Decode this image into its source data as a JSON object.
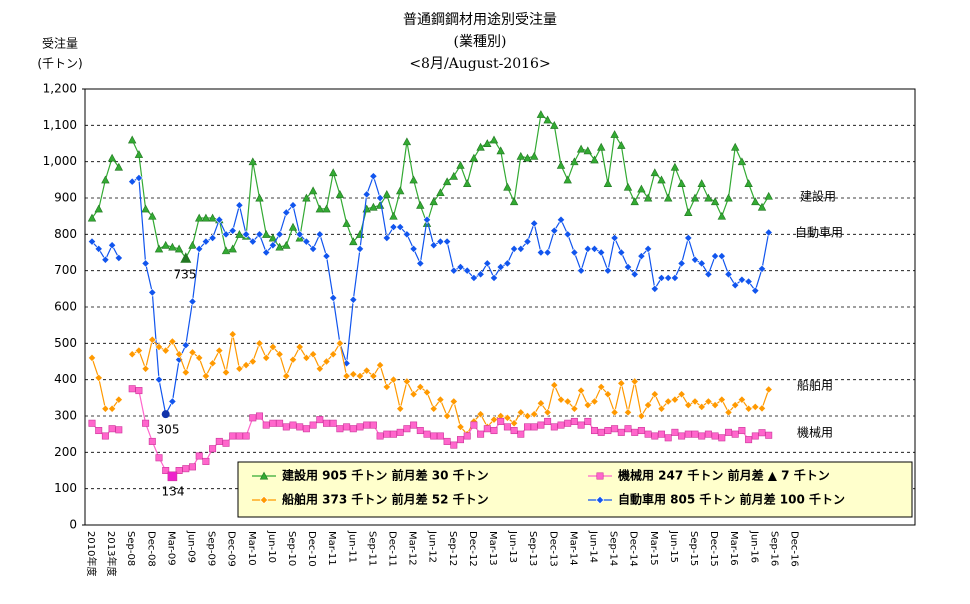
{
  "chart_data": {
    "type": "line",
    "title": [
      "普通鋼鋼材用途別受注量",
      "(業種別)",
      "<8月/August-2016>"
    ],
    "y_label": [
      "受注量",
      "(千トン)"
    ],
    "ylim": [
      0,
      1200
    ],
    "yticks": [
      0,
      100,
      200,
      300,
      400,
      500,
      600,
      700,
      800,
      900,
      {
        "value": 1000,
        "label": "1,000"
      },
      {
        "value": 1100,
        "label": "1,100"
      },
      {
        "value": 1200,
        "label": "1,200"
      }
    ],
    "grid": true,
    "categories": [
      "2010年度",
      null,
      null,
      "2013年度",
      null,
      null,
      "Sep-08",
      null,
      null,
      "Dec-08",
      null,
      null,
      "Mar-09",
      null,
      null,
      "Jun-09",
      null,
      null,
      "Sep-09",
      null,
      null,
      "Dec-09",
      null,
      null,
      "Mar-10",
      null,
      null,
      "Jun-10",
      null,
      null,
      "Sep-10",
      null,
      null,
      "Dec-10",
      null,
      null,
      "Mar-11",
      null,
      null,
      "Jun-11",
      null,
      null,
      "Sep-11",
      null,
      null,
      "Dec-11",
      null,
      null,
      "Mar-12",
      null,
      null,
      "Jun-12",
      null,
      null,
      "Sep-12",
      null,
      null,
      "Dec-12",
      null,
      null,
      "Mar-13",
      null,
      null,
      "Jun-13",
      null,
      null,
      "Sep-13",
      null,
      null,
      "Dec-13",
      null,
      null,
      "Mar-14",
      null,
      null,
      "Jun-14",
      null,
      null,
      "Sep-14",
      null,
      null,
      "Dec-14",
      null,
      null,
      "Mar-15",
      null,
      null,
      "Jun-15",
      null,
      null,
      "Sep-15",
      null,
      null,
      "Dec-15",
      null,
      null,
      "Mar-16",
      null,
      null,
      "Jun-16",
      null,
      null,
      "Sep-16",
      null,
      null,
      "Dec-16"
    ],
    "series": [
      {
        "name": "建設用",
        "color": "#33aa33",
        "marker": "triangle",
        "legend_label": "建設用 905 千トン 前月差 30 千トン",
        "values": [
          845,
          870,
          950,
          1010,
          985,
          null,
          1060,
          1020,
          870,
          850,
          760,
          770,
          765,
          760,
          735,
          770,
          845,
          845,
          845,
          840,
          755,
          760,
          800,
          795,
          1000,
          900,
          800,
          790,
          765,
          770,
          820,
          790,
          900,
          920,
          870,
          870,
          970,
          910,
          830,
          780,
          800,
          870,
          875,
          880,
          910,
          850,
          920,
          1055,
          950,
          880,
          830,
          890,
          915,
          945,
          960,
          990,
          940,
          1010,
          1040,
          1050,
          1060,
          1030,
          930,
          890,
          1015,
          1010,
          1015,
          1130,
          1115,
          1100,
          990,
          950,
          1000,
          1035,
          1030,
          1005,
          1040,
          940,
          1075,
          1045,
          930,
          890,
          925,
          900,
          970,
          950,
          900,
          985,
          940,
          860,
          900,
          940,
          900,
          890,
          850,
          900,
          1040,
          1000,
          940,
          890,
          875,
          905,
          null,
          null,
          null,
          null
        ]
      },
      {
        "name": "自動車用",
        "color": "#1155ee",
        "marker": "diamond",
        "legend_label": "自動車用 805 千トン 前月差 100 千トン",
        "values": [
          780,
          760,
          730,
          770,
          735,
          null,
          945,
          955,
          720,
          640,
          400,
          305,
          340,
          455,
          495,
          615,
          760,
          780,
          790,
          840,
          800,
          810,
          880,
          800,
          780,
          800,
          750,
          770,
          800,
          860,
          880,
          800,
          780,
          760,
          800,
          740,
          625,
          500,
          445,
          620,
          760,
          910,
          960,
          900,
          790,
          820,
          820,
          800,
          760,
          720,
          840,
          770,
          780,
          780,
          700,
          710,
          700,
          680,
          690,
          720,
          680,
          710,
          720,
          760,
          760,
          780,
          830,
          750,
          750,
          810,
          840,
          800,
          750,
          700,
          760,
          760,
          750,
          700,
          790,
          750,
          710,
          690,
          740,
          760,
          650,
          680,
          680,
          680,
          720,
          790,
          730,
          720,
          690,
          740,
          740,
          690,
          660,
          675,
          670,
          645,
          705,
          805,
          null,
          null,
          null,
          null
        ]
      },
      {
        "name": "船舶用",
        "color": "#ff9900",
        "marker": "diamond",
        "legend_label": "船舶用 373 千トン 前月差 52 千トン",
        "values": [
          460,
          405,
          320,
          320,
          345,
          null,
          470,
          480,
          430,
          510,
          490,
          480,
          505,
          470,
          420,
          475,
          460,
          410,
          445,
          480,
          420,
          525,
          430,
          440,
          450,
          500,
          460,
          490,
          470,
          410,
          455,
          490,
          460,
          470,
          430,
          450,
          470,
          500,
          410,
          415,
          410,
          425,
          410,
          440,
          380,
          400,
          320,
          395,
          360,
          380,
          365,
          320,
          345,
          300,
          340,
          270,
          250,
          285,
          305,
          270,
          290,
          300,
          295,
          280,
          310,
          300,
          305,
          335,
          310,
          385,
          345,
          340,
          320,
          370,
          330,
          340,
          380,
          360,
          310,
          390,
          310,
          395,
          300,
          330,
          360,
          320,
          340,
          345,
          360,
          330,
          340,
          325,
          340,
          330,
          345,
          310,
          330,
          345,
          320,
          325,
          321,
          373,
          null,
          null,
          null,
          null
        ]
      },
      {
        "name": "機械用",
        "color": "#ff66cc",
        "marker": "square",
        "legend_label": "機械用 247 千トン 前月差 ▲ 7 千トン",
        "values": [
          280,
          260,
          245,
          265,
          262,
          null,
          375,
          370,
          280,
          230,
          185,
          150,
          134,
          150,
          155,
          160,
          190,
          175,
          210,
          230,
          225,
          245,
          245,
          245,
          295,
          300,
          275,
          280,
          280,
          270,
          275,
          270,
          265,
          275,
          290,
          280,
          280,
          265,
          270,
          265,
          270,
          275,
          275,
          245,
          250,
          250,
          255,
          265,
          275,
          260,
          250,
          245,
          245,
          230,
          220,
          235,
          245,
          275,
          250,
          265,
          260,
          285,
          270,
          260,
          250,
          270,
          270,
          275,
          285,
          270,
          275,
          280,
          285,
          275,
          285,
          260,
          255,
          260,
          265,
          255,
          265,
          255,
          260,
          250,
          245,
          250,
          240,
          255,
          245,
          250,
          250,
          245,
          250,
          245,
          240,
          255,
          250,
          260,
          235,
          245,
          254,
          247,
          null,
          null,
          null,
          null
        ]
      }
    ],
    "annotations": [
      "735",
      "305",
      "134"
    ]
  }
}
